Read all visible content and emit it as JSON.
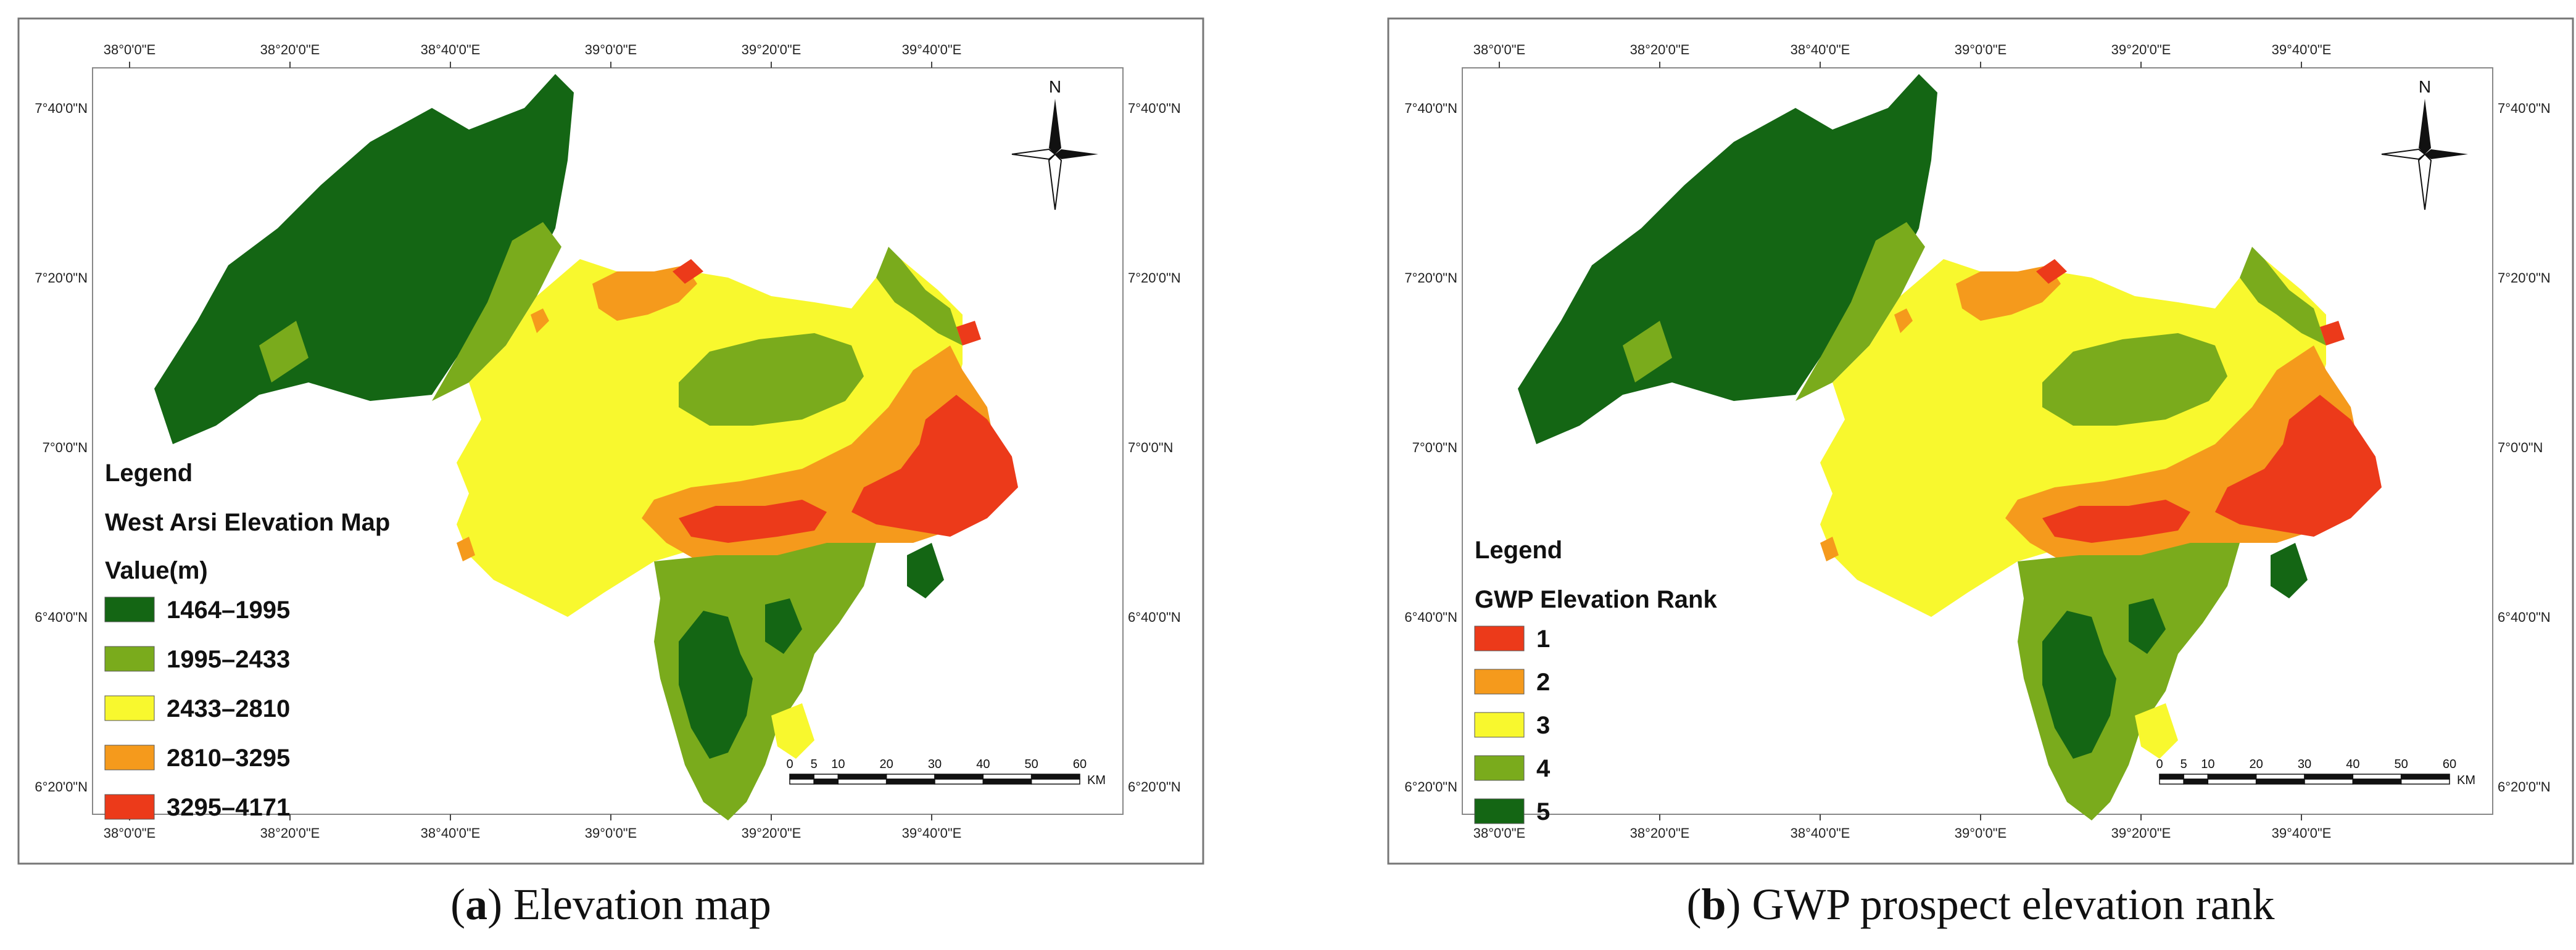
{
  "panels": [
    {
      "id": "a",
      "top_ticks": [
        "38°0'0\"E",
        "38°20'0\"E",
        "38°40'0\"E",
        "39°0'0\"E",
        "39°20'0\"E",
        "39°40'0\"E"
      ],
      "bottom_ticks": [
        "38°0'0\"E",
        "38°20'0\"E",
        "38°40'0\"E",
        "39°0'0\"E",
        "39°20'0\"E",
        "39°40'0\"E"
      ],
      "left_ticks": [
        "7°40'0\"N",
        "7°20'0\"N",
        "7°0'0\"N",
        "6°40'0\"N",
        "6°20'0\"N"
      ],
      "right_ticks": [
        "7°40'0\"N",
        "7°20'0\"N",
        "7°0'0\"N",
        "6°40'0\"N",
        "6°20'0\"N"
      ],
      "north_label": "N",
      "legend": {
        "heading": "Legend",
        "title": "West Arsi Elevation Map",
        "subtitle": "Value(m)",
        "items": [
          {
            "label": "1464–1995",
            "color": "#146614"
          },
          {
            "label": "1995–2433",
            "color": "#7aab1c"
          },
          {
            "label": "2433–2810",
            "color": "#f8f82e"
          },
          {
            "label": "2810–3295",
            "color": "#f59a1c"
          },
          {
            "label": "3295–4171",
            "color": "#ec3a1a"
          }
        ]
      },
      "scale": {
        "ticks": [
          "0",
          "5",
          "10",
          "20",
          "30",
          "40",
          "50",
          "60"
        ],
        "unit": "KM"
      },
      "caption": {
        "letter": "a",
        "text": "Elevation map"
      }
    },
    {
      "id": "b",
      "top_ticks": [
        "38°0'0\"E",
        "38°20'0\"E",
        "38°40'0\"E",
        "39°0'0\"E",
        "39°20'0\"E",
        "39°40'0\"E"
      ],
      "bottom_ticks": [
        "38°0'0\"E",
        "38°20'0\"E",
        "38°40'0\"E",
        "39°0'0\"E",
        "39°20'0\"E",
        "39°40'0\"E"
      ],
      "left_ticks": [
        "7°40'0\"N",
        "7°20'0\"N",
        "7°0'0\"N",
        "6°40'0\"N",
        "6°20'0\"N"
      ],
      "right_ticks": [
        "7°40'0\"N",
        "7°20'0\"N",
        "7°0'0\"N",
        "6°40'0\"N",
        "6°20'0\"N"
      ],
      "north_label": "N",
      "legend": {
        "heading": "Legend",
        "title": "GWP Elevation Rank",
        "subtitle": "",
        "items": [
          {
            "label": "1",
            "color": "#ec3a1a"
          },
          {
            "label": "2",
            "color": "#f59a1c"
          },
          {
            "label": "3",
            "color": "#f8f82e"
          },
          {
            "label": "4",
            "color": "#7aab1c"
          },
          {
            "label": "5",
            "color": "#146614"
          }
        ]
      },
      "scale": {
        "ticks": [
          "0",
          "5",
          "10",
          "20",
          "30",
          "40",
          "50",
          "60"
        ],
        "unit": "KM"
      },
      "caption": {
        "letter": "b",
        "text": "GWP prospect elevation rank"
      }
    }
  ],
  "palette": {
    "dark_green": "#146614",
    "light_green": "#7aab1c",
    "yellow": "#f8f82e",
    "orange": "#f59a1c",
    "red": "#ec3a1a"
  }
}
